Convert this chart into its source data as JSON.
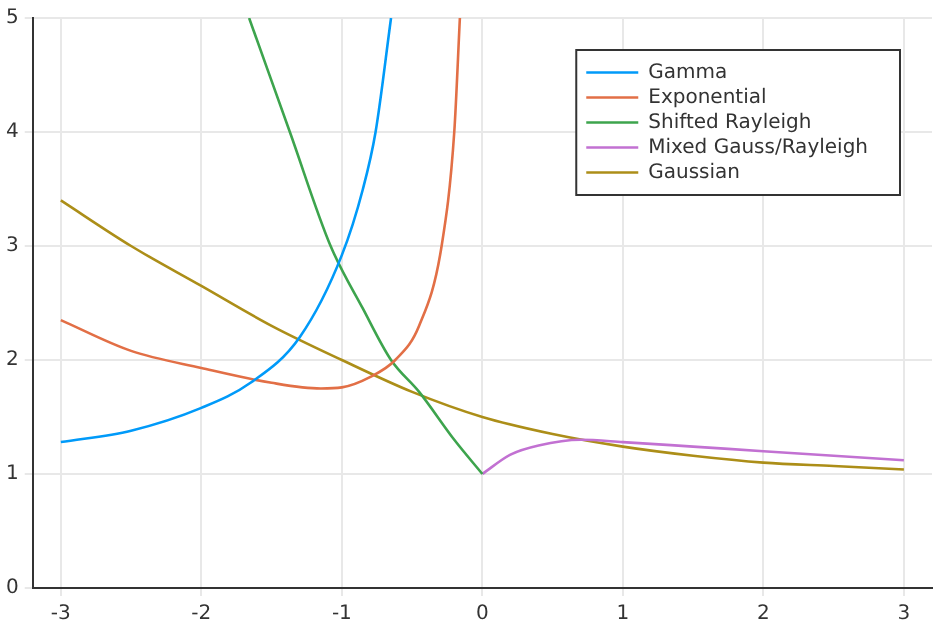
{
  "chart_data": {
    "type": "line",
    "xlim": [
      -3.2,
      3.2
    ],
    "ylim": [
      0,
      5
    ],
    "xticks": [
      -3,
      -2,
      -1,
      0,
      1,
      2,
      3
    ],
    "yticks": [
      0,
      1,
      2,
      3,
      4,
      5
    ],
    "grid": true,
    "legend": "top right",
    "marker": "none",
    "line_style": "solid",
    "series": [
      {
        "name": "Gamma",
        "color": "#009af9",
        "x": [
          -3,
          -2.5,
          -2,
          -1.65,
          -1.3,
          -1,
          -0.85,
          -0.76,
          -0.65
        ],
        "values": [
          1.28,
          1.38,
          1.58,
          1.8,
          2.2,
          2.92,
          3.5,
          4.0,
          5
        ]
      },
      {
        "name": "Exponential",
        "color": "#e26f46",
        "x": [
          -3,
          -2.5,
          -2,
          -1.5,
          -1.15,
          -1,
          -0.8,
          -0.62,
          -0.45,
          -0.29,
          -0.2,
          -0.16
        ],
        "values": [
          2.35,
          2.08,
          1.93,
          1.8,
          1.75,
          1.76,
          1.85,
          2.0,
          2.3,
          3.0,
          4.0,
          5
        ]
      },
      {
        "name": "Shifted Rayleigh",
        "color": "#3da44d",
        "x": [
          -1.66,
          -1.37,
          -1.08,
          -0.85,
          -0.65,
          -0.45,
          -0.2,
          0
        ],
        "values": [
          5,
          4,
          3,
          2.45,
          2.0,
          1.72,
          1.3,
          1.0
        ]
      },
      {
        "name": "Mixed Gauss/Rayleigh",
        "color": "#c271d2",
        "x": [
          0,
          0.2,
          0.4,
          0.7,
          1,
          1.5,
          2,
          2.5,
          3
        ],
        "values": [
          1.0,
          1.17,
          1.25,
          1.3,
          1.28,
          1.24,
          1.2,
          1.16,
          1.12
        ]
      },
      {
        "name": "Gaussian",
        "color": "#ac8e18",
        "x": [
          -3,
          -2.5,
          -2,
          -1.5,
          -1,
          -0.5,
          0,
          0.5,
          1,
          1.5,
          2,
          2.5,
          3
        ],
        "values": [
          3.4,
          3.0,
          2.65,
          2.3,
          2.0,
          1.72,
          1.5,
          1.35,
          1.24,
          1.16,
          1.1,
          1.07,
          1.04
        ]
      }
    ]
  }
}
